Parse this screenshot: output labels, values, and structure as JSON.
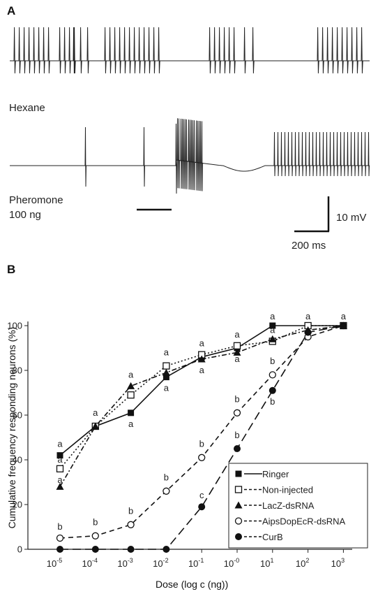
{
  "panel_a": {
    "letter": "A",
    "trace1_label": "Hexane",
    "trace2_label_line1": "Pheromone",
    "trace2_label_line2": "100 ng",
    "scale_v": "10 mV",
    "scale_t": "200 ms"
  },
  "panel_b": {
    "letter": "B"
  },
  "chart_data": {
    "type": "line",
    "xlabel": "Dose (log c (ng))",
    "ylabel": "Cumulative frequency responding neurons (%)",
    "x_tick_labels": [
      {
        "base": "10",
        "exp": "-5"
      },
      {
        "base": "10",
        "exp": "-4"
      },
      {
        "base": "10",
        "exp": "-3"
      },
      {
        "base": "10",
        "exp": "-2"
      },
      {
        "base": "10",
        "exp": "-1"
      },
      {
        "base": "10",
        "exp": "-0"
      },
      {
        "base": "10",
        "exp": "1"
      },
      {
        "base": "10",
        "exp": "2"
      },
      {
        "base": "10",
        "exp": "3"
      }
    ],
    "x": [
      -5,
      -4,
      -3,
      -2,
      -1,
      0,
      1,
      2,
      3
    ],
    "y_ticks": [
      "0",
      "20",
      "40",
      "60",
      "80",
      "100"
    ],
    "ylim": [
      0,
      100
    ],
    "legend_position": "bottom-right",
    "series": [
      {
        "name": "Ringer",
        "marker": "filled-square",
        "dash": "solid",
        "x": [
          -5,
          -4,
          -3,
          -2,
          -1,
          0,
          1,
          2,
          3
        ],
        "values": [
          42,
          55,
          61,
          77,
          86,
          90,
          100,
          100,
          100
        ]
      },
      {
        "name": "Non-injected",
        "marker": "open-square",
        "dash": "dotted",
        "x": [
          -5,
          -4,
          -3,
          -2,
          -1,
          0,
          1,
          2,
          3
        ],
        "values": [
          36,
          55,
          69,
          82,
          87,
          91,
          93,
          100,
          100
        ]
      },
      {
        "name": "LacZ-dsRNA",
        "marker": "filled-triangle",
        "dash": "dashdot",
        "x": [
          -5,
          -4,
          -3,
          -2,
          -1,
          0,
          1,
          2,
          3
        ],
        "values": [
          28,
          55,
          73,
          79,
          85,
          88,
          94,
          98,
          100
        ]
      },
      {
        "name": "AipsDopEcR-dsRNA",
        "marker": "open-circle",
        "dash": "dashed",
        "x": [
          -5,
          -4,
          -3,
          -2,
          -1,
          0,
          1,
          2,
          3
        ],
        "values": [
          5,
          6,
          11,
          26,
          41,
          61,
          78,
          95,
          100
        ]
      },
      {
        "name": "CurB",
        "marker": "filled-circle",
        "dash": "longdash",
        "x": [
          -5,
          -4,
          -3,
          -2,
          -1,
          0,
          1,
          2,
          3
        ],
        "values": [
          0,
          0,
          0,
          0,
          19,
          45,
          71,
          97,
          100
        ]
      }
    ],
    "annotations": [
      {
        "text": "a",
        "x": -5,
        "y": 47
      },
      {
        "text": "a",
        "x": -5,
        "y": 40
      },
      {
        "text": "a",
        "x": -5,
        "y": 31
      },
      {
        "text": "b",
        "x": -5,
        "y": 10
      },
      {
        "text": "a",
        "x": -4,
        "y": 61
      },
      {
        "text": "b",
        "x": -4,
        "y": 12
      },
      {
        "text": "a",
        "x": -3,
        "y": 78
      },
      {
        "text": "a",
        "x": -3,
        "y": 56
      },
      {
        "text": "b",
        "x": -3,
        "y": 17
      },
      {
        "text": "a",
        "x": -2,
        "y": 88
      },
      {
        "text": "a",
        "x": -2,
        "y": 72
      },
      {
        "text": "b",
        "x": -2,
        "y": 32
      },
      {
        "text": "a",
        "x": -1,
        "y": 92
      },
      {
        "text": "a",
        "x": -1,
        "y": 80
      },
      {
        "text": "b",
        "x": -1,
        "y": 47
      },
      {
        "text": "c",
        "x": -1,
        "y": 24
      },
      {
        "text": "a",
        "x": 0,
        "y": 96
      },
      {
        "text": "a",
        "x": 0,
        "y": 85
      },
      {
        "text": "b",
        "x": 0,
        "y": 67
      },
      {
        "text": "b",
        "x": 0,
        "y": 51
      },
      {
        "text": "a",
        "x": 1,
        "y": 104
      },
      {
        "text": "a",
        "x": 1,
        "y": 98
      },
      {
        "text": "b",
        "x": 1,
        "y": 84
      },
      {
        "text": "b",
        "x": 1,
        "y": 66
      },
      {
        "text": "a",
        "x": 2,
        "y": 104
      },
      {
        "text": "a",
        "x": 3,
        "y": 104
      }
    ]
  }
}
